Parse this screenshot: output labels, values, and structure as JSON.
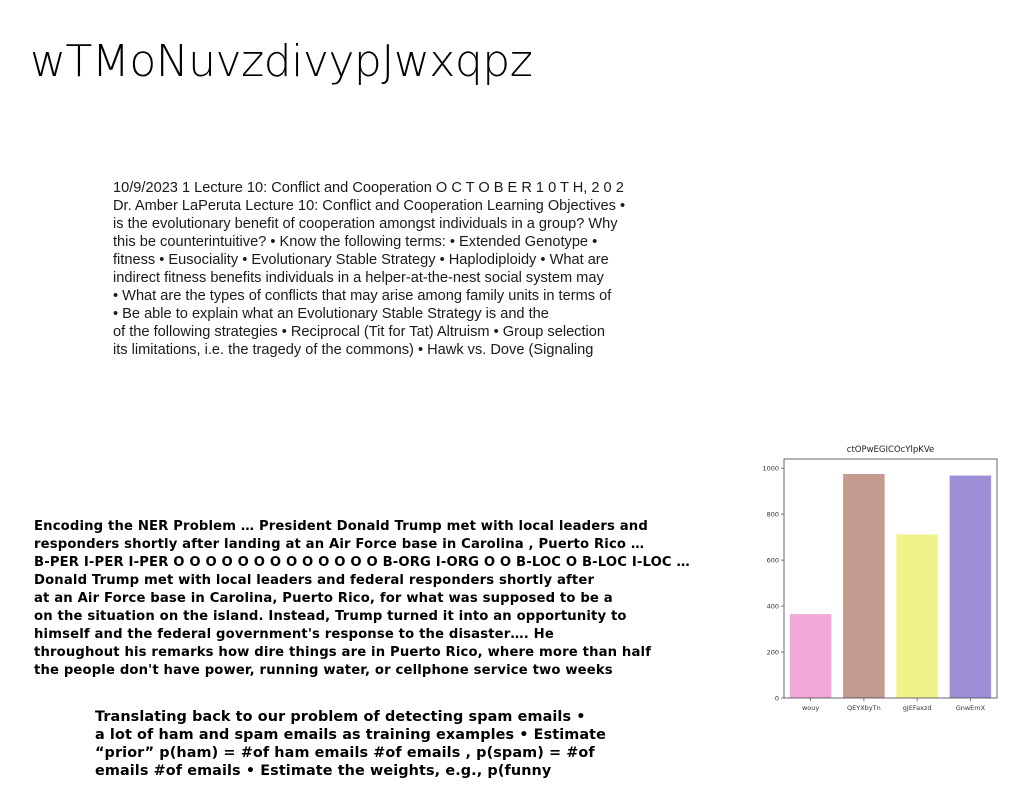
{
  "title": "wTMoNuvzdivypJwxqpz",
  "lecture_lines": [
    "10/9/2023 1 Lecture 10: Conflict and Cooperation O C T O B E R 1 0 T H, 2 0 2",
    "Dr. Amber LaPeruta Lecture 10: Conflict and Cooperation Learning Objectives •",
    "is the evolutionary benefit of cooperation amongst individuals in a group? Why",
    "this be counterintuitive? • Know the following terms: • Extended Genotype •",
    "fitness • Eusociality • Evolutionary Stable Strategy • Haplodiploidy • What are",
    "indirect fitness benefits individuals in a helper-at-the-nest social system may",
    "• What are the types of conflicts that may arise among family units in terms of",
    "• Be able to explain what an Evolutionary Stable Strategy is and the",
    "of the following strategies • Reciprocal (Tit for Tat) Altruism • Group selection",
    "its limitations, i.e. the tragedy of the commons) • Hawk vs. Dove (Signaling"
  ],
  "ner_lines": [
    "Encoding the NER Problem … President Donald Trump met with local leaders and",
    "responders shortly after landing at an Air Force base in Carolina , Puerto Rico …",
    "B-PER I-PER I-PER O O O O O O O O O O O O O B-ORG I-ORG O O B-LOC O B-LOC I-LOC …",
    "Donald Trump met with local leaders and federal responders shortly after",
    "at an Air Force base in Carolina, Puerto Rico, for what was supposed to be a",
    "on the situation on the island. Instead, Trump turned it into an opportunity to",
    "himself and the federal government's response to the disaster…. He",
    "throughout his remarks how dire things are in Puerto Rico, where more than half",
    "the people don't have power, running water, or cellphone service two weeks"
  ],
  "spam_lines": [
    "Translating back to our problem of detecting spam emails •",
    "a lot of ham and spam emails as training examples • Estimate",
    "“prior” p(ham) = #of ham emails #of emails , p(spam) = #of",
    "emails #of emails • Estimate the weights, e.g., p(funny"
  ],
  "chart_data": {
    "type": "bar",
    "title": "ctOPwEGICOcYlpKVe",
    "categories": [
      "wouy",
      "QEYXbyTn",
      "gJEFaxzd",
      "GnwEmX"
    ],
    "values": [
      365,
      975,
      712,
      968
    ],
    "colors": [
      "#f2a8d6",
      "#c49b8e",
      "#eff38a",
      "#9f8fd6"
    ],
    "y_ticks": [
      0,
      200,
      400,
      600,
      800,
      1000
    ],
    "ylim": [
      0,
      1040
    ],
    "xlabel": "",
    "ylabel": "",
    "grid": false,
    "legend": "none"
  }
}
